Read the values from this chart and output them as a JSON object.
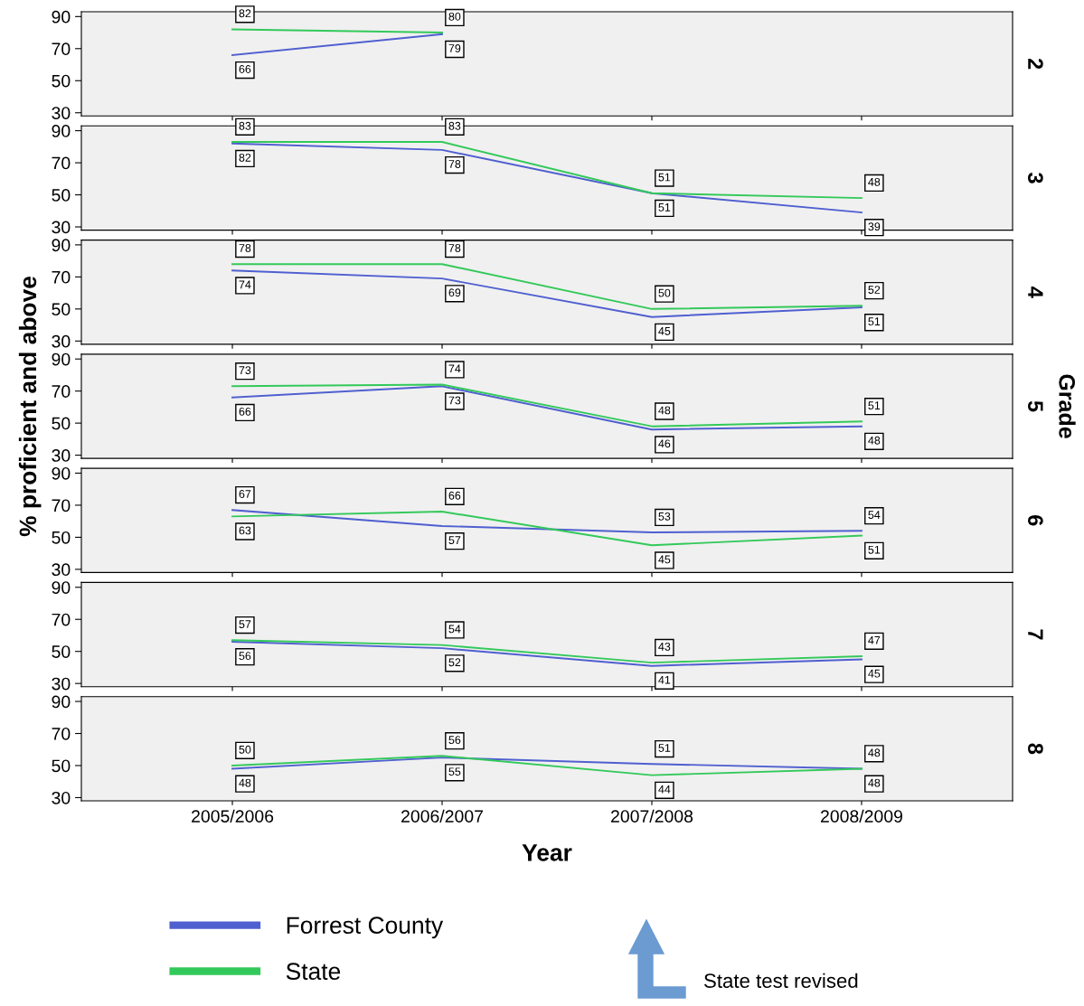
{
  "chart_data": [
    {
      "type": "line",
      "y2label": "2",
      "ylim": [
        28,
        93
      ],
      "yticks": [
        30,
        50,
        70,
        90
      ],
      "tick_labels": "y",
      "data_labels": true,
      "legend": "bottom",
      "series": [
        {
          "name": "Forrest County",
          "color": "#4f5fd0",
          "values": [
            66,
            79,
            null,
            null
          ]
        },
        {
          "name": "State",
          "color": "#33c95a",
          "values": [
            82,
            80,
            null,
            null
          ]
        }
      ]
    },
    {
      "type": "line",
      "y2label": "3",
      "ylim": [
        28,
        93
      ],
      "yticks": [
        30,
        50,
        70,
        90
      ],
      "tick_labels": "y",
      "data_labels": true,
      "series": [
        {
          "name": "Forrest County",
          "color": "#4f5fd0",
          "values": [
            82,
            78,
            51,
            39
          ]
        },
        {
          "name": "State",
          "color": "#33c95a",
          "values": [
            83,
            83,
            51,
            48
          ]
        }
      ]
    },
    {
      "type": "line",
      "y2label": "4",
      "ylim": [
        28,
        93
      ],
      "yticks": [
        30,
        50,
        70,
        90
      ],
      "tick_labels": "y",
      "data_labels": true,
      "series": [
        {
          "name": "Forrest County",
          "color": "#4f5fd0",
          "values": [
            74,
            69,
            45,
            51
          ]
        },
        {
          "name": "State",
          "color": "#33c95a",
          "values": [
            78,
            78,
            50,
            52
          ]
        }
      ]
    },
    {
      "type": "line",
      "y2label": "5",
      "ylabel": "% proficient and above",
      "annotations": [
        "Grade"
      ],
      "ylim": [
        28,
        93
      ],
      "yticks": [
        30,
        50,
        70,
        90
      ],
      "tick_labels": "y",
      "data_labels": true,
      "series": [
        {
          "name": "Forrest County",
          "color": "#4f5fd0",
          "values": [
            66,
            73,
            46,
            48
          ]
        },
        {
          "name": "State",
          "color": "#33c95a",
          "values": [
            73,
            74,
            48,
            51
          ]
        }
      ]
    },
    {
      "type": "line",
      "y2label": "6",
      "ylim": [
        28,
        93
      ],
      "yticks": [
        30,
        50,
        70,
        90
      ],
      "tick_labels": "y",
      "data_labels": true,
      "series": [
        {
          "name": "Forrest County",
          "color": "#4f5fd0",
          "values": [
            67,
            57,
            53,
            54
          ]
        },
        {
          "name": "State",
          "color": "#33c95a",
          "values": [
            63,
            66,
            45,
            51
          ]
        }
      ]
    },
    {
      "type": "line",
      "y2label": "7",
      "ylim": [
        28,
        93
      ],
      "yticks": [
        30,
        50,
        70,
        90
      ],
      "tick_labels": "y",
      "data_labels": true,
      "series": [
        {
          "name": "Forrest County",
          "color": "#4f5fd0",
          "values": [
            56,
            52,
            41,
            45
          ]
        },
        {
          "name": "State",
          "color": "#33c95a",
          "values": [
            57,
            54,
            43,
            47
          ]
        }
      ]
    },
    {
      "type": "line",
      "y2label": "8",
      "xlabel": "Year",
      "categories": [
        "2005/2006",
        "2006/2007",
        "2007/2008",
        "2008/2009"
      ],
      "ylim": [
        28,
        93
      ],
      "yticks": [
        30,
        50,
        70,
        90
      ],
      "data_labels": true,
      "annotations": [
        "State test revised"
      ],
      "series": [
        {
          "name": "Forrest County",
          "color": "#4f5fd0",
          "values": [
            48,
            55,
            51,
            48
          ]
        },
        {
          "name": "State",
          "color": "#33c95a",
          "values": [
            50,
            56,
            44,
            48
          ]
        }
      ]
    }
  ]
}
